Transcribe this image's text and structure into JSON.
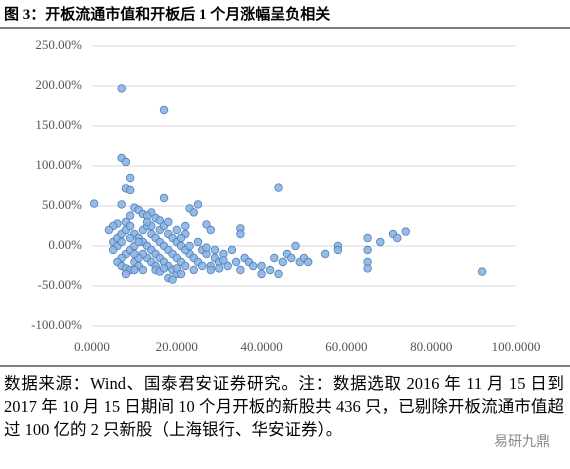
{
  "chart_data": {
    "type": "scatter",
    "title": "图 3：开板流通市值和开板后 1 个月涨幅呈负相关",
    "note": "数据来源：Wind、国泰君安证券研究。注：数据选取 2016 年 11 月 15 日到 2017 年 10 月 15 日期间 10 个月开板的新股共 436 只，已剔除开板流通市值超过 100 亿的 2 只新股（上海银行、华安证券）。",
    "watermark": "易研九鼎",
    "color": "#8db4e2",
    "edge_color": "#4f81bd",
    "grid": true,
    "xlim": [
      0,
      100
    ],
    "ylim": [
      -100,
      250
    ],
    "xticks": [
      {
        "value": 0,
        "label": "0.0000"
      },
      {
        "value": 20,
        "label": "20.0000"
      },
      {
        "value": 40,
        "label": "40.0000"
      },
      {
        "value": 60,
        "label": "60.0000"
      },
      {
        "value": 80,
        "label": "80.0000"
      },
      {
        "value": 100,
        "label": "100.0000"
      }
    ],
    "yticks": [
      {
        "value": -100,
        "label": "-100.00%"
      },
      {
        "value": -50,
        "label": "-50.00%"
      },
      {
        "value": 0,
        "label": "0.00%"
      },
      {
        "value": 50,
        "label": "50.00%"
      },
      {
        "value": 100,
        "label": "100.00%"
      },
      {
        "value": 150,
        "label": "150.00%"
      },
      {
        "value": 200,
        "label": "200.00%"
      },
      {
        "value": 250,
        "label": "250.00%"
      }
    ],
    "x": [
      7,
      17,
      7,
      8,
      9,
      8,
      9,
      0.5,
      7,
      17,
      44,
      25,
      23,
      24,
      14,
      35,
      35,
      27,
      28,
      22,
      10,
      11,
      12,
      13,
      15,
      16,
      9,
      8,
      6,
      5,
      4,
      5,
      6,
      7,
      8,
      9,
      10,
      11,
      12,
      13,
      14,
      15,
      16,
      17,
      18,
      19,
      20,
      10,
      11,
      12,
      13,
      14,
      15,
      8,
      9,
      10,
      11,
      7,
      6,
      7,
      8,
      9,
      12,
      13,
      14,
      15,
      16,
      17,
      18,
      19,
      20,
      21,
      22,
      23,
      24,
      25,
      26,
      27,
      28,
      29,
      30,
      31,
      32,
      33,
      34,
      35,
      36,
      37,
      38,
      40,
      40,
      42,
      43,
      44,
      45,
      46,
      47,
      48,
      49,
      50,
      51,
      55,
      58,
      58,
      65,
      65,
      65,
      65,
      68,
      71,
      72,
      74,
      92,
      18,
      19,
      20,
      21,
      22,
      16,
      17,
      18,
      14,
      13,
      12,
      11,
      10,
      15,
      16,
      17,
      18,
      20,
      21,
      24,
      26,
      28,
      30,
      23,
      25,
      27,
      29,
      31,
      6,
      5,
      7,
      8,
      9,
      10,
      19,
      22,
      20,
      21
    ],
    "values": [
      197,
      170,
      110,
      105,
      85,
      72,
      70,
      53,
      52,
      60,
      73,
      52,
      47,
      42,
      42,
      22,
      15,
      27,
      20,
      25,
      48,
      45,
      40,
      38,
      35,
      32,
      38,
      30,
      28,
      25,
      20,
      5,
      10,
      15,
      20,
      25,
      15,
      10,
      5,
      0,
      -5,
      -10,
      -15,
      -20,
      -25,
      -30,
      -35,
      -20,
      -25,
      -30,
      -15,
      -20,
      -25,
      -10,
      -5,
      0,
      5,
      -15,
      -20,
      -25,
      -28,
      -30,
      20,
      25,
      15,
      10,
      5,
      0,
      -5,
      -10,
      -15,
      -20,
      -25,
      -10,
      -15,
      -20,
      -5,
      -10,
      -25,
      -15,
      -20,
      -10,
      -25,
      -5,
      -20,
      -30,
      -15,
      -20,
      -25,
      -25,
      -35,
      -30,
      -15,
      -35,
      -20,
      -10,
      -15,
      0,
      -20,
      -15,
      -20,
      -10,
      0,
      -5,
      10,
      -5,
      -20,
      -28,
      5,
      15,
      10,
      18,
      -32,
      15,
      10,
      5,
      0,
      -5,
      20,
      25,
      30,
      25,
      30,
      -10,
      -15,
      -30,
      -30,
      -32,
      -28,
      -40,
      -28,
      -35,
      -30,
      -25,
      -30,
      -28,
      0,
      5,
      -2,
      -5,
      -18,
      0,
      -5,
      5,
      -35,
      10,
      -10,
      -42,
      15,
      20,
      10
    ]
  }
}
